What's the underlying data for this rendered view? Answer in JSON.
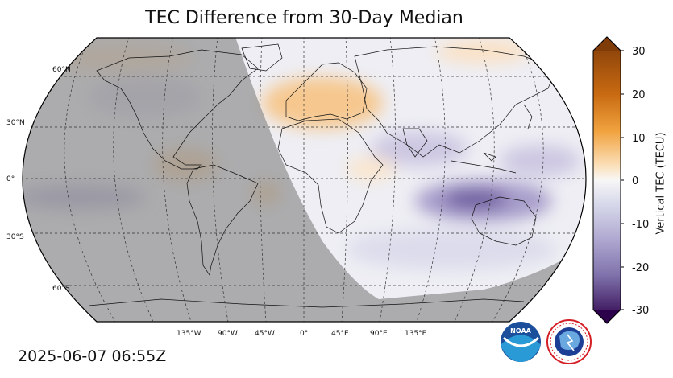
{
  "title": "TEC Difference from 30-Day Median",
  "timestamp": "2025-06-07 06:55Z",
  "colorbar": {
    "label": "Vertical TEC (TECU)",
    "ticks": [
      "30",
      "20",
      "10",
      "0",
      "-10",
      "-20",
      "-30"
    ],
    "min": -30,
    "max": 30,
    "colors": {
      "high": "#7f3b08",
      "mid_high": "#f1a340",
      "zero": "#f7f7f7",
      "mid_low": "#998ec3",
      "low": "#2d004b"
    }
  },
  "map": {
    "lat_labels": [
      "60°N",
      "30°N",
      "0°",
      "30°S",
      "60°S"
    ],
    "lon_labels": [
      "135°W",
      "90°W",
      "45°W",
      "0°",
      "45°E",
      "90°E",
      "135°E"
    ],
    "night_shade_color": "#9e9e9e"
  },
  "logos": {
    "noaa": "NOAA",
    "nws": "NATIONAL WEATHER SERVICE"
  }
}
